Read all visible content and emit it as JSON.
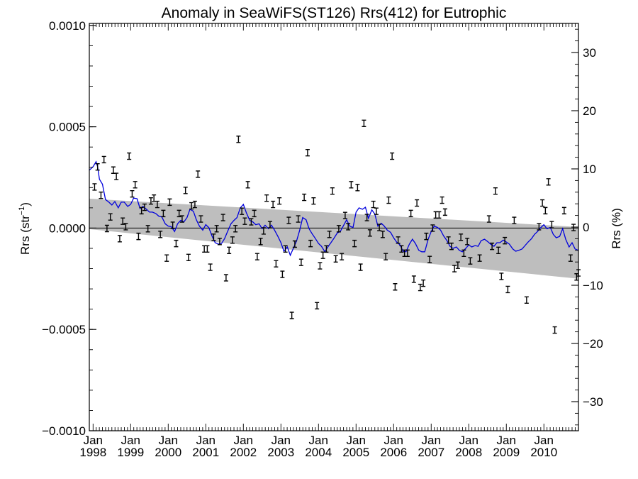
{
  "chart_data": {
    "type": "scatter",
    "title": "Anomaly in SeaWiFS(ST126) Rrs(412) for Eutrophic",
    "ylabel_left_main": "Rrs (str",
    "ylabel_left_sup": "−1",
    "ylabel_left_close": ")",
    "ylabel_right": "Rrs (%)",
    "xlim": [
      1997.9,
      2010.92
    ],
    "ylim_left": [
      -0.001,
      0.00101
    ],
    "ylim_right": [
      -35,
      35
    ],
    "left_ticks": [
      {
        "v": 0.001,
        "label": "0.0010"
      },
      {
        "v": 0.0005,
        "label": "0.0005"
      },
      {
        "v": 0.0,
        "label": "0.0000"
      },
      {
        "v": -0.0005,
        "label": "−0.0005"
      },
      {
        "v": -0.001,
        "label": "−0.0010"
      }
    ],
    "right_ticks": [
      {
        "v": 30,
        "label": "30"
      },
      {
        "v": 20,
        "label": "20"
      },
      {
        "v": 10,
        "label": "10"
      },
      {
        "v": 0,
        "label": "0"
      },
      {
        "v": -10,
        "label": "−10"
      },
      {
        "v": -20,
        "label": "−20"
      },
      {
        "v": -30,
        "label": "−30"
      }
    ],
    "x_ticks": [
      {
        "v": 1998,
        "month": "Jan",
        "year": "1998"
      },
      {
        "v": 1999,
        "month": "Jan",
        "year": "1999"
      },
      {
        "v": 2000,
        "month": "Jan",
        "year": "2000"
      },
      {
        "v": 2001,
        "month": "Jan",
        "year": "2001"
      },
      {
        "v": 2002,
        "month": "Jan",
        "year": "2002"
      },
      {
        "v": 2003,
        "month": "Jan",
        "year": "2003"
      },
      {
        "v": 2004,
        "month": "Jan",
        "year": "2004"
      },
      {
        "v": 2005,
        "month": "Jan",
        "year": "2005"
      },
      {
        "v": 2006,
        "month": "Jan",
        "year": "2006"
      },
      {
        "v": 2007,
        "month": "Jan",
        "year": "2007"
      },
      {
        "v": 2008,
        "month": "Jan",
        "year": "2008"
      },
      {
        "v": 2009,
        "month": "Jan",
        "year": "2009"
      },
      {
        "v": 2010,
        "month": "Jan",
        "year": "2010"
      }
    ],
    "zero_line": 0.0,
    "uncertainty_band": {
      "upper": [
        [
          1997.9,
          0.000145
        ],
        [
          2010.92,
          5.2e-06
        ]
      ],
      "lower": [
        [
          1997.9,
          -5.2e-06
        ],
        [
          2010.92,
          -0.00025
        ]
      ]
    },
    "points": [
      [
        1998.04,
        0.000203
      ],
      [
        1998.12,
        0.000302
      ],
      [
        1998.21,
        0.000162
      ],
      [
        1998.29,
        0.000338
      ],
      [
        1998.37,
        -2e-06
      ],
      [
        1998.46,
        5.5e-05
      ],
      [
        1998.54,
        0.000286
      ],
      [
        1998.62,
        0.000255
      ],
      [
        1998.71,
        -5.2e-05
      ],
      [
        1998.79,
        3.4e-05
      ],
      [
        1998.87,
        7e-06
      ],
      [
        1998.96,
        0.000355
      ],
      [
        1999.04,
        0.000169
      ],
      [
        1999.12,
        0.000214
      ],
      [
        1999.21,
        -4.1e-05
      ],
      [
        1999.29,
        8.6e-05
      ],
      [
        1999.37,
        0.000103
      ],
      [
        1999.46,
        -3e-06
      ],
      [
        1999.54,
        0.000134
      ],
      [
        1999.62,
        0.000148
      ],
      [
        1999.71,
        0.000117
      ],
      [
        1999.79,
        -3.1e-05
      ],
      [
        1999.87,
        7.2e-05
      ],
      [
        1999.96,
        -0.000148
      ],
      [
        2000.04,
        0.000128
      ],
      [
        2000.12,
        1.4e-05
      ],
      [
        2000.21,
        -7.6e-05
      ],
      [
        2000.29,
        7.2e-05
      ],
      [
        2000.37,
        4.5e-05
      ],
      [
        2000.46,
        0.000186
      ],
      [
        2000.54,
        -0.000145
      ],
      [
        2000.62,
        0.00011
      ],
      [
        2000.71,
        0.000117
      ],
      [
        2000.79,
        0.000266
      ],
      [
        2000.87,
        4.5e-05
      ],
      [
        2000.96,
        -0.000103
      ],
      [
        2001.04,
        -0.000103
      ],
      [
        2001.12,
        -0.000193
      ],
      [
        2001.21,
        -4.5e-05
      ],
      [
        2001.29,
        -3e-06
      ],
      [
        2001.37,
        -6.6e-05
      ],
      [
        2001.46,
        5.2e-05
      ],
      [
        2001.54,
        -0.000245
      ],
      [
        2001.62,
        -0.00011
      ],
      [
        2001.71,
        -5.9e-05
      ],
      [
        2001.79,
        -3e-06
      ],
      [
        2001.87,
        0.000438
      ],
      [
        2001.96,
        8.3e-05
      ],
      [
        2002.04,
        3.4e-05
      ],
      [
        2002.12,
        0.000214
      ],
      [
        2002.21,
        3.1e-05
      ],
      [
        2002.29,
        7.2e-05
      ],
      [
        2002.37,
        -0.000141
      ],
      [
        2002.46,
        -6.6e-05
      ],
      [
        2002.54,
        -1.4e-05
      ],
      [
        2002.62,
        0.000148
      ],
      [
        2002.71,
        1.7e-05
      ],
      [
        2002.79,
        0.000117
      ],
      [
        2002.87,
        -0.000176
      ],
      [
        2002.96,
        0.000134
      ],
      [
        2003.04,
        -0.000228
      ],
      [
        2003.12,
        -0.000103
      ],
      [
        2003.21,
        3.8e-05
      ],
      [
        2003.29,
        -0.000431
      ],
      [
        2003.37,
        -7.9e-05
      ],
      [
        2003.46,
        4.5e-05
      ],
      [
        2003.54,
        -0.000169
      ],
      [
        2003.62,
        0.000152
      ],
      [
        2003.71,
        0.000372
      ],
      [
        2003.79,
        -7.6e-05
      ],
      [
        2003.87,
        0.000134
      ],
      [
        2003.96,
        -0.000383
      ],
      [
        2004.04,
        -0.000186
      ],
      [
        2004.12,
        -0.000134
      ],
      [
        2004.21,
        -0.000103
      ],
      [
        2004.29,
        -3.1e-05
      ],
      [
        2004.37,
        0.000183
      ],
      [
        2004.46,
        -0.000152
      ],
      [
        2004.54,
        -3e-06
      ],
      [
        2004.62,
        -0.000141
      ],
      [
        2004.71,
        6.2e-05
      ],
      [
        2004.79,
        7e-06
      ],
      [
        2004.87,
        0.000214
      ],
      [
        2004.96,
        -7.6e-05
      ],
      [
        2005.04,
        0.0002
      ],
      [
        2005.12,
        -0.000193
      ],
      [
        2005.21,
        0.000517
      ],
      [
        2005.29,
        5.2e-05
      ],
      [
        2005.37,
        -2.4e-05
      ],
      [
        2005.46,
        0.000117
      ],
      [
        2005.54,
        8.3e-05
      ],
      [
        2005.62,
        3e-06
      ],
      [
        2005.71,
        -3.1e-05
      ],
      [
        2005.79,
        -0.000141
      ],
      [
        2005.87,
        0.000138
      ],
      [
        2005.96,
        0.000355
      ],
      [
        2006.04,
        -0.00029
      ],
      [
        2006.12,
        -5.9e-05
      ],
      [
        2006.21,
        -0.000103
      ],
      [
        2006.29,
        -0.000124
      ],
      [
        2006.37,
        -0.000124
      ],
      [
        2006.46,
        7.2e-05
      ],
      [
        2006.54,
        -0.000252
      ],
      [
        2006.62,
        0.000124
      ],
      [
        2006.71,
        -0.000293
      ],
      [
        2006.79,
        -0.000272
      ],
      [
        2006.87,
        -4.1e-05
      ],
      [
        2006.96,
        -0.000155
      ],
      [
        2007.04,
        0.0
      ],
      [
        2007.12,
        6.5e-05
      ],
      [
        2007.21,
        6.5e-05
      ],
      [
        2007.29,
        0.000138
      ],
      [
        2007.37,
        7.9e-05
      ],
      [
        2007.46,
        -5.9e-05
      ],
      [
        2007.54,
        -9e-05
      ],
      [
        2007.62,
        -0.0002
      ],
      [
        2007.71,
        -0.000183
      ],
      [
        2007.79,
        -4.5e-05
      ],
      [
        2007.87,
        -0.000124
      ],
      [
        2007.96,
        -6.6e-05
      ],
      [
        2008.04,
        -0.000162
      ],
      [
        2008.29,
        -0.000148
      ],
      [
        2008.54,
        4.5e-05
      ],
      [
        2008.62,
        -9e-05
      ],
      [
        2008.71,
        0.000183
      ],
      [
        2008.79,
        -0.00011
      ],
      [
        2008.87,
        -0.000238
      ],
      [
        2008.96,
        -6.2e-05
      ],
      [
        2009.04,
        -0.000303
      ],
      [
        2009.21,
        3.8e-05
      ],
      [
        2009.54,
        -0.000355
      ],
      [
        2009.87,
        7e-06
      ],
      [
        2009.96,
        0.000124
      ],
      [
        2010.04,
        8.6e-05
      ],
      [
        2010.12,
        0.000228
      ],
      [
        2010.21,
        1.7e-05
      ],
      [
        2010.29,
        -0.000503
      ],
      [
        2010.54,
        8.6e-05
      ],
      [
        2010.71,
        -0.000148
      ],
      [
        2010.79,
        3e-06
      ],
      [
        2010.87,
        -0.000241
      ],
      [
        2010.92,
        -0.000221
      ]
    ],
    "running_mean": [
      [
        1997.9,
        0.000286
      ],
      [
        1998.0,
        0.000303
      ],
      [
        1998.08,
        0.000328
      ],
      [
        1998.12,
        0.000303
      ],
      [
        1998.17,
        0.000241
      ],
      [
        1998.25,
        0.000217
      ],
      [
        1998.33,
        0.000141
      ],
      [
        1998.42,
        0.000128
      ],
      [
        1998.5,
        0.000114
      ],
      [
        1998.58,
        0.000131
      ],
      [
        1998.67,
        0.0001
      ],
      [
        1998.75,
        0.000128
      ],
      [
        1998.83,
        0.000128
      ],
      [
        1998.92,
        0.000107
      ],
      [
        1999.0,
        0.000117
      ],
      [
        1999.08,
        0.000148
      ],
      [
        1999.17,
        0.000145
      ],
      [
        1999.25,
        9.7e-05
      ],
      [
        1999.33,
        0.000107
      ],
      [
        1999.42,
        9.3e-05
      ],
      [
        1999.5,
        7.9e-05
      ],
      [
        1999.58,
        7.9e-05
      ],
      [
        1999.67,
        7.2e-05
      ],
      [
        1999.75,
        5.9e-05
      ],
      [
        1999.83,
        5.5e-05
      ],
      [
        1999.92,
        2.1e-05
      ],
      [
        2000.0,
        1e-05
      ],
      [
        2000.08,
        7e-06
      ],
      [
        2000.17,
        -1.7e-05
      ],
      [
        2000.25,
        2.1e-05
      ],
      [
        2000.33,
        3.8e-05
      ],
      [
        2000.42,
        3.1e-05
      ],
      [
        2000.5,
        5.2e-05
      ],
      [
        2000.58,
        9.3e-05
      ],
      [
        2000.67,
        8.3e-05
      ],
      [
        2000.75,
        4.1e-05
      ],
      [
        2000.83,
        1e-05
      ],
      [
        2000.92,
        -1e-05
      ],
      [
        2001.0,
        1.7e-05
      ],
      [
        2001.08,
        3e-06
      ],
      [
        2001.17,
        -4.1e-05
      ],
      [
        2001.25,
        -7.2e-05
      ],
      [
        2001.33,
        -7.9e-05
      ],
      [
        2001.42,
        -7.6e-05
      ],
      [
        2001.5,
        -5.2e-05
      ],
      [
        2001.58,
        -1.7e-05
      ],
      [
        2001.67,
        2.1e-05
      ],
      [
        2001.75,
        3.8e-05
      ],
      [
        2001.83,
        5.2e-05
      ],
      [
        2001.92,
        0.0001
      ],
      [
        2002.0,
        0.000117
      ],
      [
        2002.08,
        7.6e-05
      ],
      [
        2002.17,
        3.8e-05
      ],
      [
        2002.25,
        3.1e-05
      ],
      [
        2002.33,
        1.7e-05
      ],
      [
        2002.42,
        2.1e-05
      ],
      [
        2002.5,
        -3e-06
      ],
      [
        2002.58,
        1.4e-05
      ],
      [
        2002.67,
        -3e-06
      ],
      [
        2002.75,
        1.4e-05
      ],
      [
        2002.83,
        -1e-05
      ],
      [
        2002.92,
        -4.1e-05
      ],
      [
        2003.0,
        -7.2e-05
      ],
      [
        2003.08,
        -0.000114
      ],
      [
        2003.17,
        -9.3e-05
      ],
      [
        2003.25,
        -0.000134
      ],
      [
        2003.33,
        -0.0001
      ],
      [
        2003.42,
        -6.2e-05
      ],
      [
        2003.5,
        -1e-05
      ],
      [
        2003.58,
        5.2e-05
      ],
      [
        2003.67,
        4.1e-05
      ],
      [
        2003.75,
        -3e-06
      ],
      [
        2003.83,
        -2.8e-05
      ],
      [
        2003.92,
        -5.2e-05
      ],
      [
        2004.0,
        -7.6e-05
      ],
      [
        2004.08,
        -9e-05
      ],
      [
        2004.17,
        -0.000117
      ],
      [
        2004.25,
        -9.3e-05
      ],
      [
        2004.33,
        -7.2e-05
      ],
      [
        2004.42,
        -4.8e-05
      ],
      [
        2004.5,
        -2.4e-05
      ],
      [
        2004.58,
        -1.7e-05
      ],
      [
        2004.67,
        1.4e-05
      ],
      [
        2004.75,
        4.1e-05
      ],
      [
        2004.83,
        1e-05
      ],
      [
        2004.92,
        3e-06
      ],
      [
        2005.0,
        7.9e-05
      ],
      [
        2005.08,
        0.0001
      ],
      [
        2005.17,
        9.3e-05
      ],
      [
        2005.25,
        0.000103
      ],
      [
        2005.33,
        4.8e-05
      ],
      [
        2005.42,
        9e-05
      ],
      [
        2005.5,
        6.9e-05
      ],
      [
        2005.58,
        1e-05
      ],
      [
        2005.67,
        2.4e-05
      ],
      [
        2005.75,
        1e-05
      ],
      [
        2005.83,
        -1e-05
      ],
      [
        2005.92,
        -2.1e-05
      ],
      [
        2006.0,
        -4.8e-05
      ],
      [
        2006.08,
        -6.9e-05
      ],
      [
        2006.17,
        -8.3e-05
      ],
      [
        2006.25,
        -0.000114
      ],
      [
        2006.33,
        -0.000117
      ],
      [
        2006.42,
        -7.9e-05
      ],
      [
        2006.5,
        -5.5e-05
      ],
      [
        2006.58,
        -7.6e-05
      ],
      [
        2006.67,
        -0.00011
      ],
      [
        2006.75,
        -0.000117
      ],
      [
        2006.83,
        -0.000117
      ],
      [
        2006.92,
        -5.5e-05
      ],
      [
        2007.0,
        -1.7e-05
      ],
      [
        2007.08,
        1e-05
      ],
      [
        2007.17,
        3e-06
      ],
      [
        2007.25,
        -1e-05
      ],
      [
        2007.33,
        -3.8e-05
      ],
      [
        2007.42,
        -6.2e-05
      ],
      [
        2007.5,
        -9e-05
      ],
      [
        2007.58,
        -0.0001
      ],
      [
        2007.67,
        -9.3e-05
      ],
      [
        2007.75,
        -0.00011
      ],
      [
        2007.83,
        -0.000117
      ],
      [
        2007.92,
        -0.0001
      ],
      [
        2008.0,
        -8.3e-05
      ],
      [
        2008.08,
        -9.3e-05
      ],
      [
        2008.17,
        -8.6e-05
      ],
      [
        2008.25,
        -9e-05
      ],
      [
        2008.33,
        -6.2e-05
      ],
      [
        2008.42,
        -5.5e-05
      ],
      [
        2008.5,
        -6.6e-05
      ],
      [
        2008.58,
        -7.9e-05
      ],
      [
        2008.67,
        -9e-05
      ],
      [
        2008.75,
        -7.2e-05
      ],
      [
        2008.83,
        -7.2e-05
      ],
      [
        2008.92,
        -5.9e-05
      ],
      [
        2009.0,
        -6.9e-05
      ],
      [
        2009.08,
        -7.9e-05
      ],
      [
        2009.17,
        -0.000103
      ],
      [
        2009.25,
        -0.000114
      ],
      [
        2009.33,
        -0.00011
      ],
      [
        2009.42,
        -0.000103
      ],
      [
        2009.5,
        -8.6e-05
      ],
      [
        2009.58,
        -6.9e-05
      ],
      [
        2009.67,
        -5.2e-05
      ],
      [
        2009.75,
        -3.1e-05
      ],
      [
        2009.83,
        -1.7e-05
      ],
      [
        2009.92,
        3e-06
      ],
      [
        2010.0,
        1.7e-05
      ],
      [
        2010.08,
        -3e-06
      ],
      [
        2010.17,
        3e-06
      ],
      [
        2010.25,
        -3.1e-05
      ],
      [
        2010.33,
        -4.8e-05
      ],
      [
        2010.42,
        -4.1e-05
      ],
      [
        2010.5,
        -3e-06
      ],
      [
        2010.58,
        -5.5e-05
      ],
      [
        2010.67,
        -9.3e-05
      ],
      [
        2010.75,
        -7.2e-05
      ],
      [
        2010.83,
        -0.000103
      ],
      [
        2010.92,
        -0.00011
      ]
    ],
    "colors": {
      "band": "#bebebe",
      "running_mean": "#0000dd",
      "points": "#000000",
      "axes": "#000000"
    },
    "grid": false,
    "legend": "none"
  }
}
